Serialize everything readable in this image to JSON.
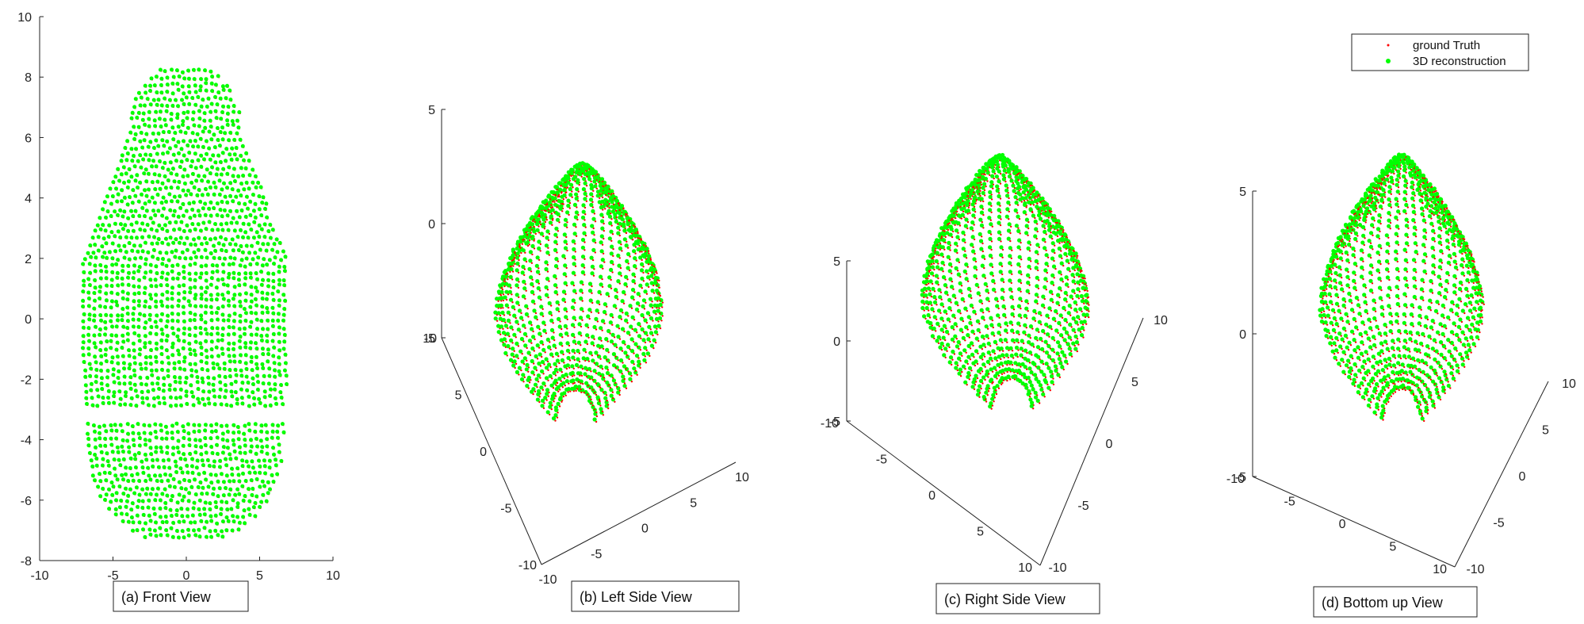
{
  "chart_data": [
    {
      "type": "scatter",
      "view": "front",
      "caption": "(a)  Front View",
      "xlim": [
        -10,
        10
      ],
      "ylim": [
        -8,
        10
      ],
      "x_ticks": [
        "-10",
        "-5",
        "0",
        "5",
        "10"
      ],
      "y_ticks": [
        "-8",
        "-6",
        "-4",
        "-2",
        "0",
        "2",
        "4",
        "6",
        "8",
        "10"
      ],
      "series": [
        {
          "name": "ground Truth",
          "color": "#ff0000"
        },
        {
          "name": "3D reconstruction",
          "color": "#00ff00"
        }
      ]
    },
    {
      "type": "scatter",
      "view": "left-side",
      "caption": "(b)  Left Side View",
      "z_ticks": [
        "5",
        "0",
        "-5"
      ],
      "axis_a_ticks": [
        "10",
        "5",
        "0",
        "-5",
        "-10"
      ],
      "axis_b_ticks": [
        "-10",
        "-5",
        "0",
        "5",
        "10"
      ]
    },
    {
      "type": "scatter",
      "view": "right-side",
      "caption": "(c)  Right Side View",
      "z_ticks": [
        "5",
        "0",
        "-5"
      ],
      "axis_a_ticks": [
        "-10",
        "-5",
        "0",
        "5",
        "10"
      ],
      "axis_b_ticks": [
        "-10",
        "-5",
        "0",
        "5",
        "10"
      ]
    },
    {
      "type": "scatter",
      "view": "bottom-up",
      "caption": "(d)  Bottom up View",
      "z_ticks": [
        "5",
        "0",
        "-5"
      ],
      "axis_a_ticks": [
        "-10",
        "-5",
        "0",
        "5",
        "10"
      ],
      "axis_b_ticks": [
        "-10",
        "-5",
        "0",
        "5",
        "10"
      ]
    }
  ],
  "legend": {
    "items": [
      {
        "label": "ground Truth",
        "color": "#ff0000"
      },
      {
        "label": "3D reconstruction",
        "color": "#00ff00"
      }
    ]
  }
}
